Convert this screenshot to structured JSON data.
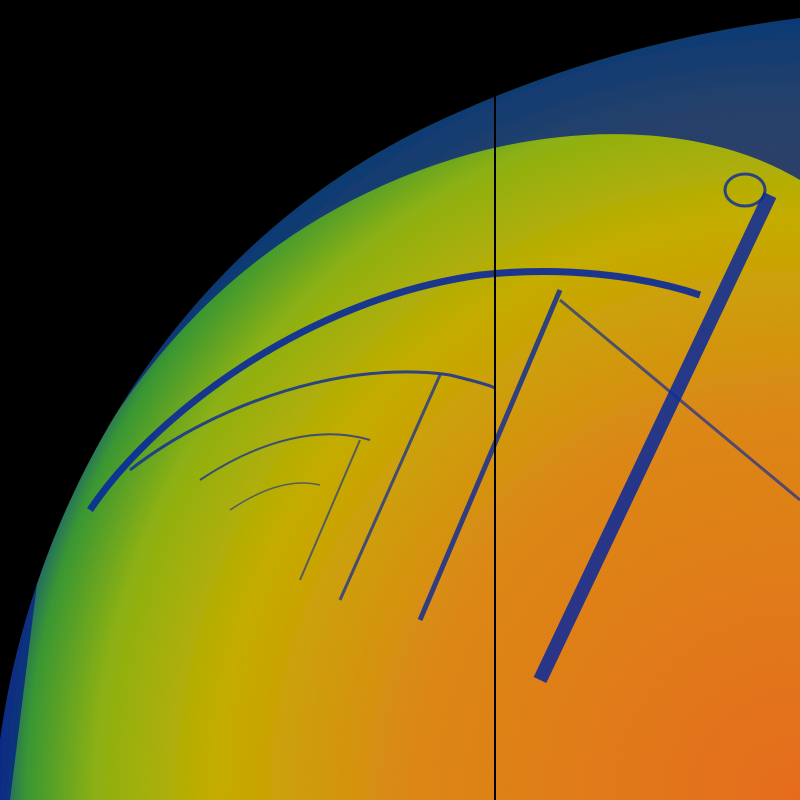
{
  "image": {
    "kind": "bifurcation-density-map",
    "colors": {
      "background": "#000000",
      "outer_band": "#001c8c",
      "inner_band": "#0a3aa0",
      "green": "#4ea62a",
      "yellow": "#c8b400",
      "orange": "#e8741a",
      "cursor_line": "#000000"
    }
  }
}
